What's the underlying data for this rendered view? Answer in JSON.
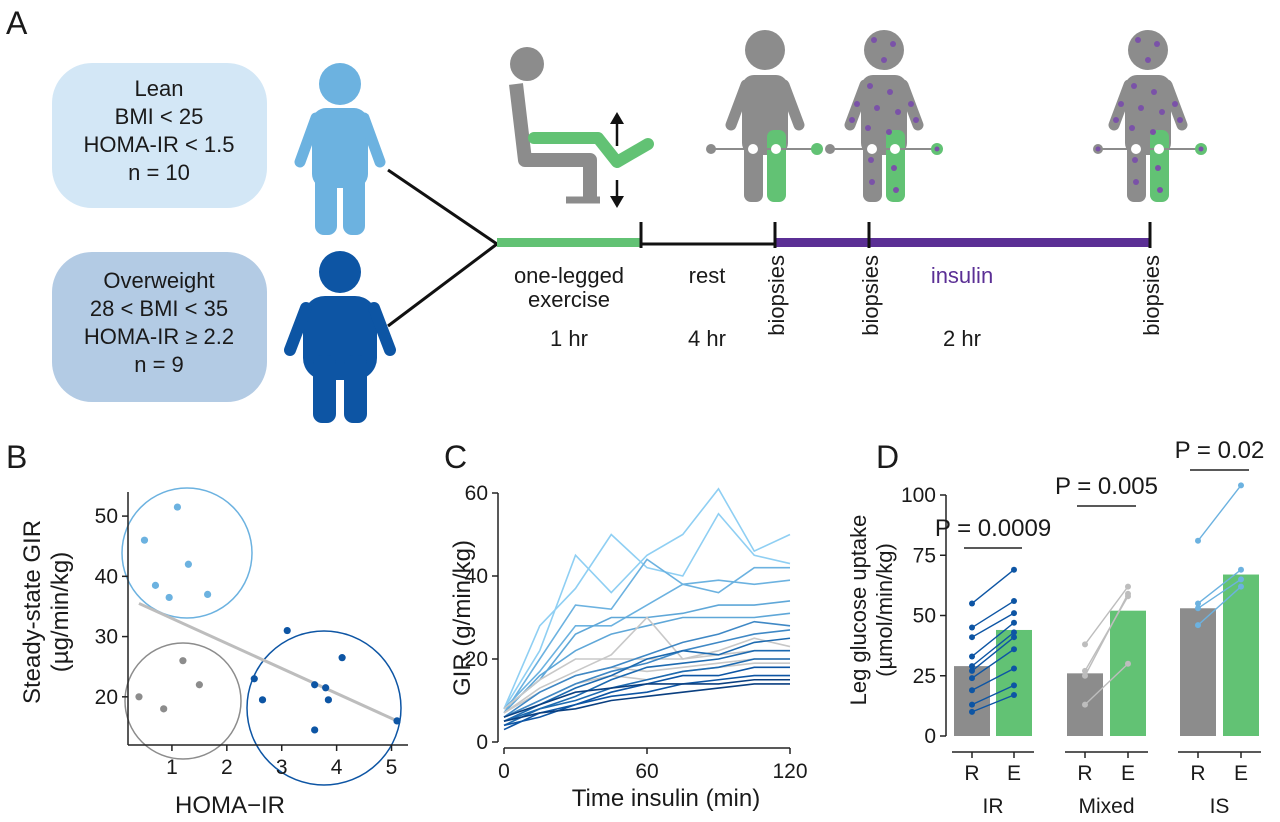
{
  "panel_labels": {
    "a": "A",
    "b": "B",
    "c": "C",
    "d": "D"
  },
  "colors": {
    "lean": "#6cb2e0",
    "lean_box": "#d3e7f6",
    "overweight": "#0d55a4",
    "overweight_box": "#b3cbe4",
    "exercise": "#62c274",
    "insulin": "#5b2f95",
    "dots": "#7a52a8",
    "grey": "#8c8c8c",
    "light_grey": "#bdbdbd"
  },
  "groups": [
    {
      "lines": [
        "Lean",
        "BMI < 25",
        "HOMA-IR < 1.5",
        "n = 10"
      ]
    },
    {
      "lines": [
        "Overweight",
        "28 < BMI < 35",
        "HOMA-IR ≥ 2.2",
        "n = 9"
      ]
    }
  ],
  "timeline": {
    "exercise_lines": [
      "one-legged",
      "exercise"
    ],
    "exercise_duration": "1 hr",
    "rest_label": "rest",
    "rest_duration": "4 hr",
    "insulin_label": "insulin",
    "insulin_duration": "2 hr",
    "biopsy_label": "biopsies"
  },
  "chart_data": [
    {
      "panel": "B",
      "type": "scatter",
      "xlabel": "HOMA−IR",
      "ylabel_lines": [
        "Steady-state GIR",
        "(µg/min/kg)"
      ],
      "xlim": [
        0.2,
        5.3
      ],
      "ylim": [
        12,
        54
      ],
      "xticks": [
        1,
        2,
        3,
        4,
        5
      ],
      "yticks": [
        20,
        30,
        40,
        50
      ],
      "series": [
        {
          "color": "#6cb2e0",
          "points": [
            [
              0.5,
              46
            ],
            [
              1.1,
              51.5
            ],
            [
              0.7,
              38.5
            ],
            [
              1.3,
              42
            ],
            [
              0.95,
              36.5
            ],
            [
              1.65,
              37
            ]
          ]
        },
        {
          "color": "#8c8c8c",
          "points": [
            [
              0.4,
              20
            ],
            [
              0.85,
              18
            ],
            [
              1.2,
              26
            ],
            [
              1.5,
              22
            ]
          ]
        },
        {
          "color": "#0d55a4",
          "points": [
            [
              2.5,
              23
            ],
            [
              3.1,
              31
            ],
            [
              2.65,
              19.5
            ],
            [
              3.6,
              22
            ],
            [
              3.8,
              21.5
            ],
            [
              3.85,
              19.5
            ],
            [
              4.1,
              26.5
            ],
            [
              3.6,
              14.5
            ],
            [
              5.1,
              16
            ]
          ]
        }
      ],
      "trend": [
        [
          0.4,
          35.5
        ],
        [
          5.1,
          16
        ]
      ]
    },
    {
      "panel": "C",
      "type": "line",
      "xlabel": "Time insulin (min)",
      "ylabel": "GIR (g/min/kg)",
      "xlim": [
        0,
        120
      ],
      "ylim": [
        0,
        60
      ],
      "xticks": [
        0,
        60,
        120
      ],
      "yticks": [
        0,
        20,
        40,
        60
      ],
      "x": [
        0,
        15,
        30,
        45,
        60,
        75,
        90,
        105,
        120
      ],
      "series": [
        {
          "color": "#8fcff3",
          "values": [
            8,
            22,
            45,
            36,
            45,
            50,
            61,
            46,
            50
          ]
        },
        {
          "color": "#8fcff3",
          "values": [
            8,
            28,
            37,
            50,
            42,
            40,
            55,
            45,
            43
          ]
        },
        {
          "color": "#6cb2e0",
          "values": [
            7,
            20,
            33,
            32,
            44,
            38,
            36,
            42,
            42
          ]
        },
        {
          "color": "#6cb2e0",
          "values": [
            8,
            17,
            28,
            28,
            33,
            38,
            39,
            38,
            39
          ]
        },
        {
          "color": "#5fa7d8",
          "values": [
            8,
            15,
            26,
            30,
            30,
            31,
            33,
            33,
            34
          ]
        },
        {
          "color": "#5fa7d8",
          "values": [
            7,
            16,
            22,
            26,
            28,
            30,
            30,
            30,
            31
          ]
        },
        {
          "color": "#c8c8c8",
          "values": [
            8,
            15,
            20,
            20,
            20,
            20,
            21,
            22,
            22
          ]
        },
        {
          "color": "#c8c8c8",
          "values": [
            7,
            13,
            17,
            21,
            30,
            20,
            22,
            25,
            23
          ]
        },
        {
          "color": "#c8c8c8",
          "values": [
            7,
            12,
            16,
            18,
            17,
            18,
            19,
            20,
            20
          ]
        },
        {
          "color": "#c8c8c8",
          "values": [
            6,
            10,
            14,
            16,
            15,
            17,
            18,
            19,
            19
          ]
        },
        {
          "color": "#3f88c5",
          "values": [
            6,
            12,
            16,
            18,
            21,
            24,
            26,
            29,
            28
          ]
        },
        {
          "color": "#3f88c5",
          "values": [
            6,
            10,
            14,
            17,
            19,
            22,
            24,
            26,
            27
          ]
        },
        {
          "color": "#1d6ab0",
          "values": [
            5,
            9,
            13,
            16,
            20,
            22,
            21,
            24,
            25
          ]
        },
        {
          "color": "#1d6ab0",
          "values": [
            5,
            8,
            11,
            15,
            18,
            19,
            20,
            22,
            22
          ]
        },
        {
          "color": "#1d6ab0",
          "values": [
            4,
            8,
            10,
            13,
            15,
            17,
            18,
            20,
            20
          ]
        },
        {
          "color": "#0d55a4",
          "values": [
            3,
            7,
            9,
            12,
            14,
            16,
            16,
            18,
            18
          ]
        },
        {
          "color": "#0d55a4",
          "values": [
            4,
            6,
            9,
            11,
            12,
            14,
            15,
            16,
            16
          ]
        },
        {
          "color": "#0a3f80",
          "values": [
            5,
            7,
            8,
            10,
            11,
            12,
            13,
            14,
            14
          ]
        },
        {
          "color": "#0a3f80",
          "values": [
            6,
            9,
            12,
            13,
            14,
            14,
            14,
            15,
            15
          ]
        }
      ]
    },
    {
      "panel": "D",
      "type": "bar",
      "ylabel_lines": [
        "Leg glucose uptake",
        "(µmol/min/kg)"
      ],
      "ylim": [
        0,
        110
      ],
      "yticks": [
        0,
        25,
        50,
        75,
        100
      ],
      "groups": [
        {
          "name": "IR",
          "p_label": "P = 0.0009",
          "bar_R": 29,
          "bar_E": 44,
          "line_color": "#0d55a4",
          "pairs": [
            [
              10,
              17
            ],
            [
              13,
              21
            ],
            [
              19,
              28
            ],
            [
              24,
              36
            ],
            [
              27,
              41
            ],
            [
              29,
              43
            ],
            [
              33,
              47
            ],
            [
              41,
              51
            ],
            [
              45,
              56
            ],
            [
              55,
              69
            ]
          ]
        },
        {
          "name": "Mixed",
          "p_label": "P = 0.005",
          "bar_R": 26,
          "bar_E": 52,
          "line_color": "#bdbdbd",
          "pairs": [
            [
              13,
              30
            ],
            [
              25,
              59
            ],
            [
              27,
              58
            ],
            [
              38,
              62
            ]
          ]
        },
        {
          "name": "IS",
          "p_label": "P = 0.02",
          "bar_R": 53,
          "bar_E": 67,
          "line_color": "#6cb2e0",
          "pairs": [
            [
              46,
              62
            ],
            [
              53,
              65
            ],
            [
              55,
              69
            ],
            [
              81,
              104
            ]
          ]
        }
      ],
      "bar_labels": [
        "R",
        "E"
      ]
    }
  ]
}
